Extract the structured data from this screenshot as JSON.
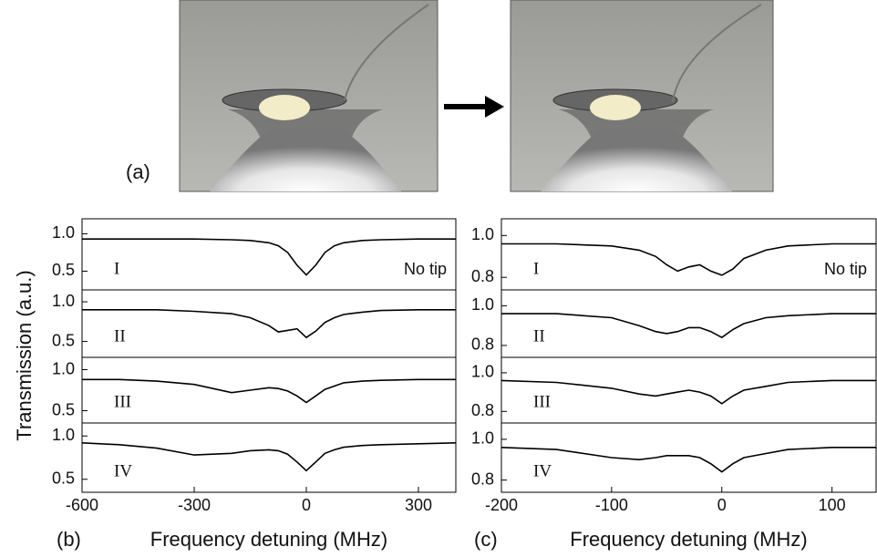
{
  "labels": {
    "a": "(a)",
    "b": "(b)",
    "c": "(c)"
  },
  "chart_data": [
    {
      "type": "line",
      "label": "I",
      "annotation": "No tip",
      "ylabel": "Transmission (a.u.)",
      "color": "#000000",
      "xlim": [
        -600,
        400
      ],
      "ylim": [
        0.25,
        1.2
      ],
      "yticks": [
        0.5,
        {
          "value": 1,
          "label": "1.0"
        }
      ],
      "x": [
        -600,
        -500,
        -400,
        -300,
        -200,
        -150,
        -100,
        -75,
        -50,
        -25,
        0,
        25,
        50,
        75,
        100,
        150,
        200,
        300,
        400
      ],
      "values": [
        0.93,
        0.93,
        0.93,
        0.93,
        0.92,
        0.91,
        0.88,
        0.84,
        0.75,
        0.58,
        0.45,
        0.58,
        0.75,
        0.84,
        0.88,
        0.91,
        0.92,
        0.93,
        0.93
      ]
    },
    {
      "type": "line",
      "label": "II",
      "color": "#000000",
      "xlim": [
        -600,
        400
      ],
      "ylim": [
        0.3,
        1.15
      ],
      "yticks": [
        0.5,
        {
          "value": 1,
          "label": "1.0"
        }
      ],
      "x": [
        -600,
        -500,
        -400,
        -300,
        -200,
        -150,
        -100,
        -75,
        -50,
        -25,
        0,
        25,
        50,
        75,
        100,
        150,
        200,
        300,
        400
      ],
      "values": [
        0.9,
        0.9,
        0.9,
        0.88,
        0.85,
        0.8,
        0.7,
        0.62,
        0.64,
        0.66,
        0.55,
        0.63,
        0.74,
        0.8,
        0.84,
        0.87,
        0.89,
        0.9,
        0.9
      ]
    },
    {
      "type": "line",
      "label": "III",
      "color": "#000000",
      "xlim": [
        -600,
        400
      ],
      "ylim": [
        0.35,
        1.15
      ],
      "yticks": [
        0.5,
        {
          "value": 1,
          "label": "1.0"
        }
      ],
      "x": [
        -600,
        -500,
        -400,
        -300,
        -200,
        -150,
        -100,
        -75,
        -50,
        -25,
        0,
        25,
        50,
        75,
        100,
        150,
        200,
        300,
        400
      ],
      "values": [
        0.88,
        0.88,
        0.86,
        0.82,
        0.72,
        0.75,
        0.78,
        0.77,
        0.74,
        0.68,
        0.6,
        0.68,
        0.76,
        0.8,
        0.84,
        0.86,
        0.87,
        0.88,
        0.88
      ]
    },
    {
      "type": "line",
      "label": "IV",
      "color": "#000000",
      "xlabel": "Frequency detuning (MHz)",
      "xlim": [
        -600,
        400
      ],
      "ylim": [
        0.35,
        1.15
      ],
      "yticks": [
        0.5,
        {
          "value": 1,
          "label": "1.0"
        }
      ],
      "xticks": [
        -600,
        -300,
        0,
        300
      ],
      "x": [
        -600,
        -500,
        -400,
        -300,
        -200,
        -150,
        -100,
        -75,
        -50,
        -25,
        0,
        25,
        50,
        75,
        100,
        150,
        200,
        300,
        400
      ],
      "values": [
        0.92,
        0.9,
        0.86,
        0.78,
        0.8,
        0.83,
        0.84,
        0.83,
        0.79,
        0.7,
        0.6,
        0.7,
        0.8,
        0.84,
        0.87,
        0.89,
        0.9,
        0.91,
        0.92
      ]
    },
    {
      "type": "line",
      "label": "I",
      "annotation": "No tip",
      "color": "#000000",
      "xlim": [
        -200,
        140
      ],
      "ylim": [
        0.74,
        1.08
      ],
      "yticks": [
        0.8,
        {
          "value": 1,
          "label": "1.0"
        }
      ],
      "x": [
        -200,
        -150,
        -100,
        -75,
        -60,
        -50,
        -40,
        -30,
        -20,
        -10,
        0,
        10,
        20,
        40,
        60,
        100,
        140
      ],
      "values": [
        0.96,
        0.96,
        0.95,
        0.93,
        0.9,
        0.86,
        0.83,
        0.85,
        0.86,
        0.83,
        0.81,
        0.84,
        0.89,
        0.93,
        0.95,
        0.96,
        0.96
      ]
    },
    {
      "type": "line",
      "label": "II",
      "color": "#000000",
      "xlim": [
        -200,
        140
      ],
      "ylim": [
        0.74,
        1.08
      ],
      "yticks": [
        0.8,
        {
          "value": 1,
          "label": "1.0"
        }
      ],
      "x": [
        -200,
        -150,
        -100,
        -75,
        -60,
        -50,
        -40,
        -30,
        -20,
        -10,
        0,
        10,
        20,
        40,
        60,
        100,
        140
      ],
      "values": [
        0.96,
        0.96,
        0.94,
        0.9,
        0.87,
        0.86,
        0.87,
        0.89,
        0.89,
        0.87,
        0.84,
        0.88,
        0.91,
        0.94,
        0.95,
        0.96,
        0.96
      ]
    },
    {
      "type": "line",
      "label": "III",
      "color": "#000000",
      "xlim": [
        -200,
        140
      ],
      "ylim": [
        0.74,
        1.08
      ],
      "yticks": [
        0.8,
        {
          "value": 1,
          "label": "1.0"
        }
      ],
      "x": [
        -200,
        -150,
        -100,
        -75,
        -60,
        -50,
        -40,
        -30,
        -20,
        -10,
        0,
        10,
        20,
        40,
        60,
        100,
        140
      ],
      "values": [
        0.96,
        0.95,
        0.92,
        0.89,
        0.88,
        0.89,
        0.9,
        0.91,
        0.9,
        0.88,
        0.84,
        0.88,
        0.91,
        0.93,
        0.95,
        0.96,
        0.96
      ]
    },
    {
      "type": "line",
      "label": "IV",
      "color": "#000000",
      "xlabel": "Frequency detuning (MHz)",
      "xlim": [
        -200,
        140
      ],
      "ylim": [
        0.74,
        1.08
      ],
      "yticks": [
        0.8,
        {
          "value": 1,
          "label": "1.0"
        }
      ],
      "xticks": [
        -200,
        -100,
        0,
        100
      ],
      "x": [
        -200,
        -150,
        -100,
        -75,
        -60,
        -50,
        -40,
        -30,
        -20,
        -10,
        0,
        10,
        20,
        40,
        60,
        100,
        140
      ],
      "values": [
        0.96,
        0.95,
        0.91,
        0.9,
        0.91,
        0.92,
        0.92,
        0.92,
        0.91,
        0.88,
        0.84,
        0.88,
        0.91,
        0.93,
        0.95,
        0.96,
        0.96
      ]
    }
  ]
}
